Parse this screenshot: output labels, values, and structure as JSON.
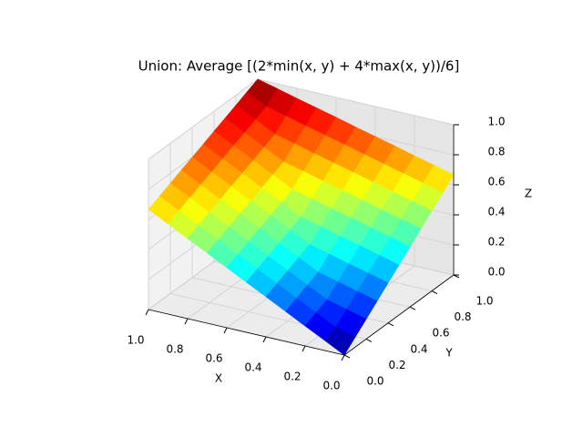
{
  "chart_data": {
    "type": "surface",
    "title": "Union: Average [(2*min(x, y) + 4*max(x, y))/6]",
    "xlabel": "X",
    "ylabel": "Y",
    "zlabel": "Z",
    "colormap": "jet",
    "grid": true,
    "x": [
      0,
      0.1,
      0.2,
      0.3,
      0.4,
      0.5,
      0.6,
      0.7,
      0.8,
      0.9,
      1
    ],
    "y": [
      0,
      0.1,
      0.2,
      0.3,
      0.4,
      0.5,
      0.6,
      0.7,
      0.8,
      0.9,
      1
    ],
    "z": [
      [
        0,
        0.067,
        0.133,
        0.2,
        0.267,
        0.333,
        0.4,
        0.467,
        0.533,
        0.6,
        0.667
      ],
      [
        0.067,
        0.1,
        0.167,
        0.233,
        0.3,
        0.367,
        0.433,
        0.5,
        0.567,
        0.633,
        0.7
      ],
      [
        0.133,
        0.167,
        0.2,
        0.267,
        0.333,
        0.4,
        0.467,
        0.533,
        0.6,
        0.667,
        0.733
      ],
      [
        0.2,
        0.233,
        0.267,
        0.3,
        0.367,
        0.433,
        0.5,
        0.567,
        0.633,
        0.7,
        0.767
      ],
      [
        0.267,
        0.3,
        0.333,
        0.367,
        0.4,
        0.467,
        0.533,
        0.6,
        0.667,
        0.733,
        0.8
      ],
      [
        0.333,
        0.367,
        0.4,
        0.433,
        0.467,
        0.5,
        0.567,
        0.633,
        0.7,
        0.767,
        0.833
      ],
      [
        0.4,
        0.433,
        0.467,
        0.5,
        0.533,
        0.567,
        0.6,
        0.667,
        0.733,
        0.8,
        0.867
      ],
      [
        0.467,
        0.5,
        0.533,
        0.567,
        0.6,
        0.633,
        0.667,
        0.7,
        0.767,
        0.833,
        0.9
      ],
      [
        0.533,
        0.567,
        0.6,
        0.633,
        0.667,
        0.7,
        0.733,
        0.767,
        0.8,
        0.867,
        0.933
      ],
      [
        0.6,
        0.633,
        0.667,
        0.7,
        0.733,
        0.767,
        0.8,
        0.833,
        0.867,
        0.9,
        0.967
      ],
      [
        0.667,
        0.7,
        0.733,
        0.767,
        0.8,
        0.833,
        0.867,
        0.9,
        0.933,
        0.967,
        1
      ]
    ],
    "xlim": [
      0,
      1
    ],
    "ylim": [
      0,
      1
    ],
    "zlim": [
      0,
      1
    ],
    "xticks": [
      {
        "value": 0,
        "label": "0.0"
      },
      {
        "value": 0.2,
        "label": "0.2"
      },
      {
        "value": 0.4,
        "label": "0.4"
      },
      {
        "value": 0.6,
        "label": "0.6"
      },
      {
        "value": 0.8,
        "label": "0.8"
      },
      {
        "value": 1,
        "label": "1.0"
      }
    ],
    "yticks": [
      {
        "value": 0,
        "label": "0.0"
      },
      {
        "value": 0.2,
        "label": "0.2"
      },
      {
        "value": 0.4,
        "label": "0.4"
      },
      {
        "value": 0.6,
        "label": "0.6"
      },
      {
        "value": 0.8,
        "label": "0.8"
      },
      {
        "value": 1,
        "label": "1.0"
      }
    ],
    "zticks": [
      {
        "value": 0,
        "label": "0.0"
      },
      {
        "value": 0.2,
        "label": "0.2"
      },
      {
        "value": 0.4,
        "label": "0.4"
      },
      {
        "value": 0.6,
        "label": "0.6"
      },
      {
        "value": 0.8,
        "label": "0.8"
      },
      {
        "value": 1,
        "label": "1.0"
      }
    ]
  }
}
